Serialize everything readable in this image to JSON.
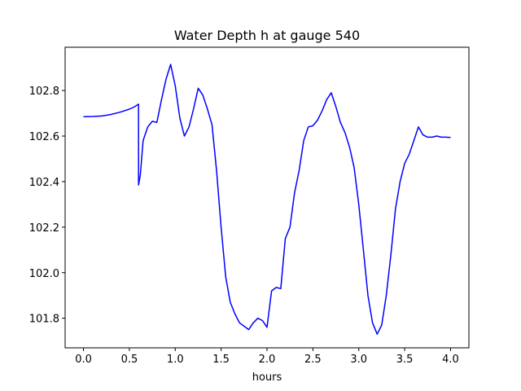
{
  "chart_data": {
    "type": "line",
    "title": "Water Depth h at gauge 540",
    "xlabel": "hours",
    "ylabel": "",
    "xlim": [
      -0.2,
      4.2
    ],
    "ylim": [
      101.67,
      102.99
    ],
    "xticks": [
      0.0,
      0.5,
      1.0,
      1.5,
      2.0,
      2.5,
      3.0,
      3.5,
      4.0
    ],
    "xtick_labels": [
      "0.0",
      "0.5",
      "1.0",
      "1.5",
      "2.0",
      "2.5",
      "3.0",
      "3.5",
      "4.0"
    ],
    "yticks": [
      101.8,
      102.0,
      102.2,
      102.4,
      102.6,
      102.8
    ],
    "ytick_labels": [
      "101.8",
      "102.0",
      "102.2",
      "102.4",
      "102.6",
      "102.8"
    ],
    "grid": false,
    "series": [
      {
        "color": "#0000ff",
        "x": [
          0.0,
          0.1,
          0.2,
          0.3,
          0.4,
          0.5,
          0.55,
          0.6,
          0.6,
          0.62,
          0.65,
          0.7,
          0.75,
          0.8,
          0.85,
          0.9,
          0.95,
          1.0,
          1.05,
          1.1,
          1.15,
          1.2,
          1.25,
          1.3,
          1.35,
          1.4,
          1.45,
          1.5,
          1.55,
          1.6,
          1.65,
          1.7,
          1.75,
          1.8,
          1.85,
          1.9,
          1.95,
          2.0,
          2.05,
          2.1,
          2.15,
          2.2,
          2.25,
          2.3,
          2.35,
          2.4,
          2.45,
          2.5,
          2.55,
          2.6,
          2.65,
          2.7,
          2.75,
          2.8,
          2.85,
          2.9,
          2.95,
          3.0,
          3.05,
          3.1,
          3.15,
          3.2,
          3.25,
          3.3,
          3.35,
          3.4,
          3.45,
          3.5,
          3.55,
          3.6,
          3.65,
          3.7,
          3.75,
          3.8,
          3.85,
          3.9,
          3.95,
          4.0
        ],
        "values": [
          102.685,
          102.686,
          102.688,
          102.695,
          102.705,
          102.718,
          102.727,
          102.74,
          102.385,
          102.43,
          102.58,
          102.64,
          102.665,
          102.66,
          102.76,
          102.85,
          102.915,
          102.82,
          102.68,
          102.6,
          102.64,
          102.72,
          102.81,
          102.78,
          102.72,
          102.65,
          102.45,
          102.2,
          101.98,
          101.87,
          101.82,
          101.78,
          101.765,
          101.75,
          101.78,
          101.8,
          101.79,
          101.76,
          101.92,
          101.935,
          101.93,
          102.15,
          102.2,
          102.35,
          102.45,
          102.58,
          102.64,
          102.645,
          102.67,
          102.71,
          102.76,
          102.79,
          102.73,
          102.66,
          102.615,
          102.55,
          102.46,
          102.3,
          102.1,
          101.9,
          101.78,
          101.73,
          101.77,
          101.9,
          102.08,
          102.28,
          102.4,
          102.48,
          102.52,
          102.58,
          102.64,
          102.605,
          102.595,
          102.595,
          102.6,
          102.595,
          102.595,
          102.594
        ]
      }
    ]
  }
}
